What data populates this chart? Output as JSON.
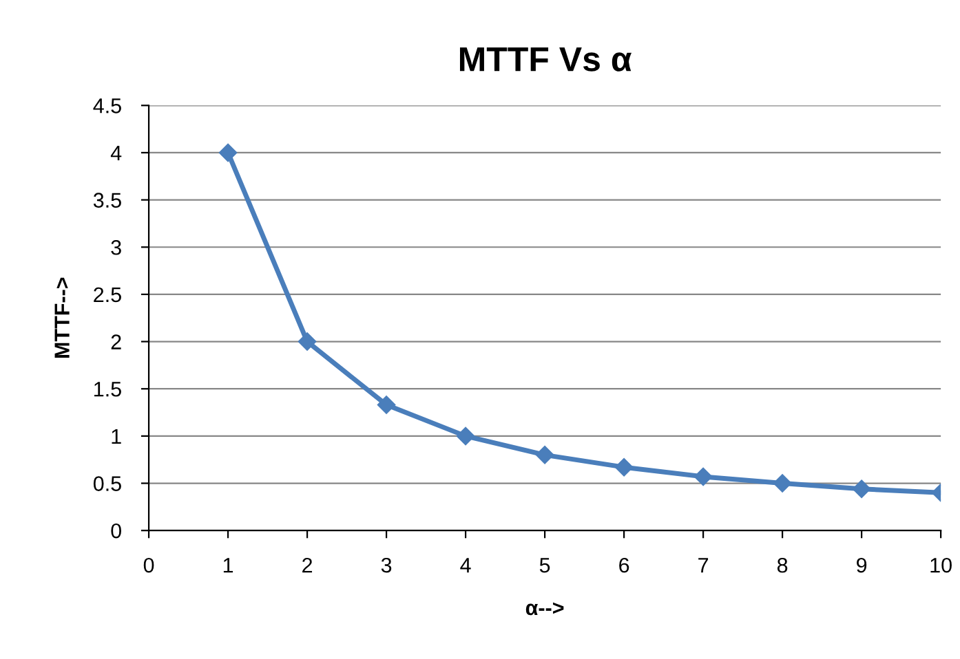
{
  "chart_data": {
    "type": "line",
    "title": "MTTF Vs α",
    "xlabel": "α-->",
    "ylabel": "MTTF-->",
    "x": [
      1,
      2,
      3,
      4,
      5,
      6,
      7,
      8,
      9,
      10
    ],
    "series": [
      {
        "color": "#4a7ebb",
        "values": [
          4,
          2,
          1.33,
          1,
          0.8,
          0.67,
          0.57,
          0.5,
          0.44,
          0.4
        ]
      }
    ],
    "xlim": [
      0,
      10
    ],
    "xticks": [
      0,
      1,
      2,
      3,
      4,
      5,
      6,
      7,
      8,
      9,
      10
    ],
    "ylim": [
      0,
      4.5
    ],
    "yticks": [
      0,
      0.5,
      1,
      1.5,
      2,
      2.5,
      3,
      3.5,
      4,
      4.5
    ],
    "grid": "y",
    "marker": "diamond",
    "line_style": "solid"
  }
}
